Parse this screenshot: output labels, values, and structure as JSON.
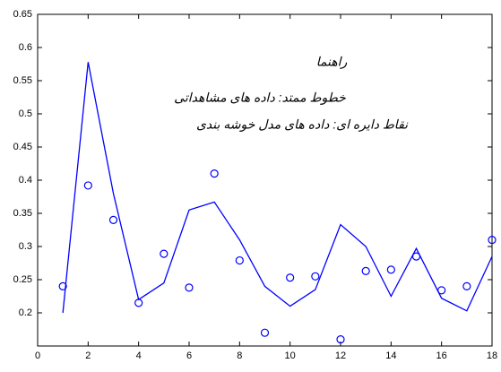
{
  "chart_data": {
    "type": "line",
    "x": [
      1,
      2,
      3,
      4,
      5,
      6,
      7,
      8,
      9,
      10,
      11,
      12,
      13,
      14,
      15,
      16,
      17,
      18
    ],
    "series": [
      {
        "style": "line",
        "color": "#0000ff",
        "values": [
          0.2,
          0.578,
          0.38,
          0.22,
          0.245,
          0.355,
          0.367,
          0.31,
          0.24,
          0.21,
          0.235,
          0.333,
          0.3,
          0.225,
          0.297,
          0.222,
          0.203,
          0.285
        ]
      },
      {
        "style": "marker",
        "color": "#0000ff",
        "values": [
          0.24,
          0.392,
          0.34,
          0.215,
          0.289,
          0.238,
          0.41,
          0.279,
          0.17,
          0.253,
          0.255,
          0.16,
          0.263,
          0.265,
          0.285,
          0.234,
          0.24,
          0.31
        ]
      }
    ],
    "xlim": [
      0,
      18
    ],
    "xticks": [
      0,
      2,
      4,
      6,
      8,
      10,
      12,
      14,
      16,
      18
    ],
    "ylim": [
      0.15,
      0.65
    ],
    "yticks": [
      0.2,
      0.25,
      0.3,
      0.35,
      0.4,
      0.45,
      0.5,
      0.55,
      0.6,
      0.65
    ],
    "annotations": [
      "راهنما",
      "خطوط ممتد: داده های مشاهداتی",
      "نقاط دایره ای: داده های مدل خوشه بندی"
    ]
  }
}
